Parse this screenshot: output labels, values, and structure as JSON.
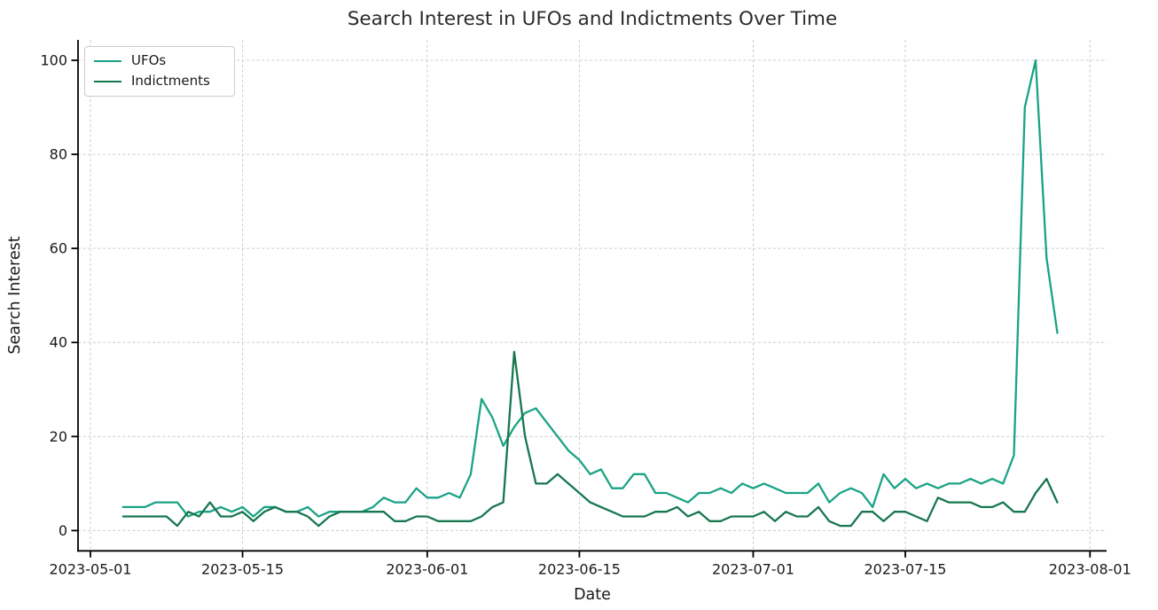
{
  "chart_data": {
    "type": "line",
    "title": "Search Interest in UFOs and Indictments Over Time",
    "xlabel": "Date",
    "ylabel": "Search Interest",
    "ylim": [
      0,
      100
    ],
    "y_ticks": [
      0,
      20,
      40,
      60,
      80,
      100
    ],
    "x_ticks": [
      "2023-05-01",
      "2023-05-15",
      "2023-06-01",
      "2023-06-15",
      "2023-07-01",
      "2023-07-15",
      "2023-08-01"
    ],
    "grid": true,
    "grid_color": "#cccccc",
    "legend_position": "upper left",
    "dates": [
      "2023-05-04",
      "2023-05-05",
      "2023-05-06",
      "2023-05-07",
      "2023-05-08",
      "2023-05-09",
      "2023-05-10",
      "2023-05-11",
      "2023-05-12",
      "2023-05-13",
      "2023-05-14",
      "2023-05-15",
      "2023-05-16",
      "2023-05-17",
      "2023-05-18",
      "2023-05-19",
      "2023-05-20",
      "2023-05-21",
      "2023-05-22",
      "2023-05-23",
      "2023-05-24",
      "2023-05-25",
      "2023-05-26",
      "2023-05-27",
      "2023-05-28",
      "2023-05-29",
      "2023-05-30",
      "2023-05-31",
      "2023-06-01",
      "2023-06-02",
      "2023-06-03",
      "2023-06-04",
      "2023-06-05",
      "2023-06-06",
      "2023-06-07",
      "2023-06-08",
      "2023-06-09",
      "2023-06-10",
      "2023-06-11",
      "2023-06-12",
      "2023-06-13",
      "2023-06-14",
      "2023-06-15",
      "2023-06-16",
      "2023-06-17",
      "2023-06-18",
      "2023-06-19",
      "2023-06-20",
      "2023-06-21",
      "2023-06-22",
      "2023-06-23",
      "2023-06-24",
      "2023-06-25",
      "2023-06-26",
      "2023-06-27",
      "2023-06-28",
      "2023-06-29",
      "2023-06-30",
      "2023-07-01",
      "2023-07-02",
      "2023-07-03",
      "2023-07-04",
      "2023-07-05",
      "2023-07-06",
      "2023-07-07",
      "2023-07-08",
      "2023-07-09",
      "2023-07-10",
      "2023-07-11",
      "2023-07-12",
      "2023-07-13",
      "2023-07-14",
      "2023-07-15",
      "2023-07-16",
      "2023-07-17",
      "2023-07-18",
      "2023-07-19",
      "2023-07-20",
      "2023-07-21",
      "2023-07-22",
      "2023-07-23",
      "2023-07-24",
      "2023-07-25",
      "2023-07-26",
      "2023-07-27",
      "2023-07-28",
      "2023-07-29"
    ],
    "series": [
      {
        "name": "UFOs",
        "color": "#1aa386",
        "values": [
          5,
          5,
          5,
          6,
          6,
          6,
          3,
          4,
          4,
          5,
          4,
          5,
          3,
          5,
          5,
          4,
          4,
          5,
          3,
          4,
          4,
          4,
          4,
          5,
          7,
          6,
          6,
          9,
          7,
          7,
          8,
          7,
          12,
          28,
          24,
          18,
          22,
          25,
          26,
          23,
          20,
          17,
          15,
          12,
          13,
          9,
          9,
          12,
          12,
          8,
          8,
          7,
          6,
          8,
          8,
          9,
          8,
          10,
          9,
          10,
          9,
          8,
          8,
          8,
          10,
          6,
          8,
          9,
          8,
          5,
          12,
          9,
          11,
          9,
          10,
          9,
          10,
          10,
          11,
          10,
          11,
          10,
          16,
          90,
          100,
          58,
          42
        ]
      },
      {
        "name": "Indictments",
        "color": "#17774f",
        "values": [
          3,
          3,
          3,
          3,
          3,
          1,
          4,
          3,
          6,
          3,
          3,
          4,
          2,
          4,
          5,
          4,
          4,
          3,
          1,
          3,
          4,
          4,
          4,
          4,
          4,
          2,
          2,
          3,
          3,
          2,
          2,
          2,
          2,
          3,
          5,
          6,
          38,
          20,
          10,
          10,
          12,
          10,
          8,
          6,
          5,
          4,
          3,
          3,
          3,
          4,
          4,
          5,
          3,
          4,
          2,
          2,
          3,
          3,
          3,
          4,
          2,
          4,
          3,
          3,
          5,
          2,
          1,
          1,
          4,
          4,
          2,
          4,
          4,
          3,
          2,
          7,
          6,
          6,
          6,
          5,
          5,
          6,
          4,
          4,
          8,
          11,
          6
        ]
      }
    ]
  }
}
